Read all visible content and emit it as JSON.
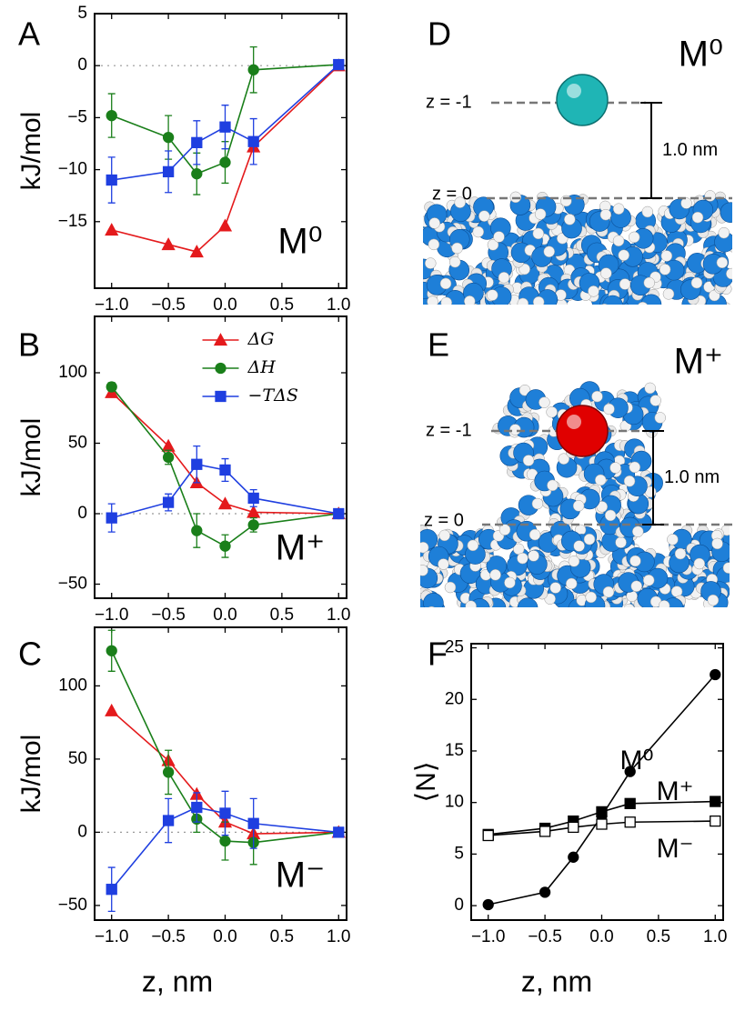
{
  "chart_data": [
    {
      "type": "line",
      "panel_label": "A",
      "annotation": "M⁰",
      "ylabel": "kJ/mol",
      "zero_line": true,
      "x": [
        -1,
        -0.5,
        -0.25,
        0,
        0.25,
        1
      ],
      "xlim": [
        -1.15,
        1.07
      ],
      "xticks": [
        {
          "value": -1,
          "label": "−1.0"
        },
        {
          "value": -0.5,
          "label": "−0.5"
        },
        {
          "value": 0,
          "label": "0.0"
        },
        {
          "value": 0.5,
          "label": "0.5"
        },
        {
          "value": 1,
          "label": "1.0"
        }
      ],
      "ylim": [
        -21.4,
        5
      ],
      "yticks": [
        5,
        0,
        {
          "value": -5,
          "label": "−5"
        },
        {
          "value": -10,
          "label": "−10"
        },
        {
          "value": -15,
          "label": "−15"
        }
      ],
      "series": [
        {
          "name": "ΔG",
          "color": "#e41a1c",
          "marker": "triangle",
          "filled": true,
          "values": [
            -15.8,
            -17.2,
            -17.9,
            -15.4,
            -7.8,
            0
          ]
        },
        {
          "name": "ΔH",
          "color": "#1a7f1a",
          "marker": "circle",
          "filled": true,
          "values": [
            -4.8,
            -6.9,
            -10.4,
            -9.3,
            -0.4,
            0.1
          ],
          "errors": [
            2.1,
            2.1,
            2.0,
            2.0,
            2.2,
            0
          ]
        },
        {
          "name": "−TΔS",
          "color": "#1f3fe0",
          "marker": "square",
          "filled": true,
          "values": [
            -11.0,
            -10.2,
            -7.4,
            -5.9,
            -7.3,
            0.1
          ],
          "errors": [
            2.2,
            2.0,
            2.1,
            2.1,
            2.2,
            0
          ]
        }
      ]
    },
    {
      "type": "line",
      "panel_label": "B",
      "annotation": "M⁺",
      "ylabel": "kJ/mol",
      "zero_line": true,
      "legend": "upper center",
      "x": [
        -1,
        -0.5,
        -0.25,
        0,
        0.25,
        1
      ],
      "xlim": [
        -1.15,
        1.07
      ],
      "xticks": [
        {
          "value": -1,
          "label": "−1.0"
        },
        {
          "value": -0.5,
          "label": "−0.5"
        },
        {
          "value": 0,
          "label": "0.0"
        },
        {
          "value": 0.5,
          "label": "0.5"
        },
        {
          "value": 1,
          "label": "1.0"
        }
      ],
      "ylim": [
        -60,
        140
      ],
      "yticks": [
        100,
        50,
        0,
        {
          "value": -50,
          "label": "−50"
        }
      ],
      "series": [
        {
          "name": "ΔG",
          "color": "#e41a1c",
          "marker": "triangle",
          "filled": true,
          "values": [
            86,
            48,
            22,
            7,
            1,
            0
          ]
        },
        {
          "name": "ΔH",
          "color": "#1a7f1a",
          "marker": "circle",
          "filled": true,
          "values": [
            90,
            40,
            -12,
            -23,
            -8,
            0
          ],
          "errors": [
            3,
            5,
            12,
            8,
            5,
            0
          ]
        },
        {
          "name": "−TΔS",
          "color": "#1f3fe0",
          "marker": "square",
          "filled": true,
          "values": [
            -3,
            8,
            35,
            31,
            11,
            0
          ],
          "errors": [
            10,
            6,
            13,
            8,
            6,
            0
          ]
        }
      ]
    },
    {
      "type": "line",
      "panel_label": "C",
      "annotation": "M⁻",
      "ylabel": "kJ/mol",
      "zero_line": true,
      "xlabel": "z, nm",
      "x": [
        -1,
        -0.5,
        -0.25,
        0,
        0.25,
        1
      ],
      "xlim": [
        -1.15,
        1.07
      ],
      "xticks": [
        {
          "value": -1,
          "label": "−1.0"
        },
        {
          "value": -0.5,
          "label": "−0.5"
        },
        {
          "value": 0,
          "label": "0.0"
        },
        {
          "value": 0.5,
          "label": "0.5"
        },
        {
          "value": 1,
          "label": "1.0"
        }
      ],
      "ylim": [
        -60,
        140
      ],
      "yticks": [
        100,
        50,
        0,
        {
          "value": -50,
          "label": "−50"
        }
      ],
      "series": [
        {
          "name": "ΔG",
          "color": "#e41a1c",
          "marker": "triangle",
          "filled": true,
          "values": [
            83,
            49,
            26,
            7,
            -1,
            0
          ]
        },
        {
          "name": "ΔH",
          "color": "#1a7f1a",
          "marker": "circle",
          "filled": true,
          "values": [
            124,
            41,
            9,
            -6,
            -7,
            0
          ],
          "errors": [
            14,
            15,
            9,
            13,
            15,
            0
          ]
        },
        {
          "name": "−TΔS",
          "color": "#1f3fe0",
          "marker": "square",
          "filled": true,
          "values": [
            -39,
            8,
            17,
            13,
            6,
            0
          ],
          "errors": [
            15,
            15,
            10,
            15,
            17,
            0
          ]
        }
      ]
    },
    {
      "type": "line",
      "panel_label": "F",
      "ylabel": "⟨N⟩",
      "xlabel": "z, nm",
      "x": [
        -1,
        -0.5,
        -0.25,
        0,
        0.25,
        1
      ],
      "xlim": [
        -1.15,
        1.07
      ],
      "xticks": [
        {
          "value": -1,
          "label": "−1.0"
        },
        {
          "value": -0.5,
          "label": "−0.5"
        },
        {
          "value": 0,
          "label": "0.0"
        },
        {
          "value": 0.5,
          "label": "0.5"
        },
        {
          "value": 1,
          "label": "1.0"
        }
      ],
      "ylim": [
        -1.4,
        25.4
      ],
      "yticks": [
        0,
        5,
        10,
        15,
        20,
        25
      ],
      "series": [
        {
          "name": "M⁰",
          "color": "#000000",
          "marker": "circle",
          "filled": true,
          "values": [
            0.1,
            1.3,
            4.7,
            8.7,
            13.0,
            22.4
          ]
        },
        {
          "name": "M⁺",
          "color": "#000000",
          "marker": "square",
          "filled": true,
          "values": [
            6.9,
            7.5,
            8.2,
            9.1,
            9.9,
            10.1
          ]
        },
        {
          "name": "M⁻",
          "color": "#000000",
          "marker": "square",
          "filled": false,
          "values": [
            6.8,
            7.2,
            7.6,
            7.9,
            8.1,
            8.2
          ]
        }
      ]
    }
  ],
  "illustrations": [
    {
      "panel_label": "D",
      "species": "M⁰",
      "z_top": "z = -1",
      "z_bottom": "z = 0",
      "distance": "1.0 nm"
    },
    {
      "panel_label": "E",
      "species": "M⁺",
      "z_top": "z = -1",
      "z_bottom": "z = 0",
      "distance": "1.0 nm"
    }
  ]
}
